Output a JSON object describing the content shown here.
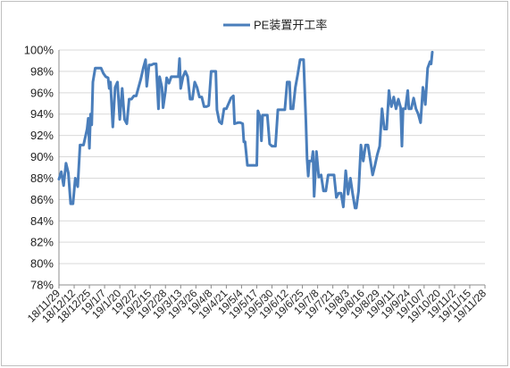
{
  "chart_data": {
    "type": "line",
    "series": [
      {
        "name": "PE装置开工率",
        "color": "#4a7ebb",
        "points": [
          [
            "2018-11-29",
            87.9
          ],
          [
            "2018-12-01",
            88.6
          ],
          [
            "2018-12-03",
            87.3
          ],
          [
            "2018-12-05",
            89.4
          ],
          [
            "2018-12-07",
            88.5
          ],
          [
            "2018-12-09",
            85.6
          ],
          [
            "2018-12-11",
            85.6
          ],
          [
            "2018-12-13",
            88.0
          ],
          [
            "2018-12-15",
            87.2
          ],
          [
            "2018-12-17",
            91.1
          ],
          [
            "2018-12-20",
            91.1
          ],
          [
            "2018-12-23",
            92.6
          ],
          [
            "2018-12-24",
            93.6
          ],
          [
            "2018-12-25",
            90.8
          ],
          [
            "2018-12-26",
            94.0
          ],
          [
            "2018-12-27",
            93.0
          ],
          [
            "2018-12-28",
            97.0
          ],
          [
            "2018-12-30",
            98.3
          ],
          [
            "2019-01-02",
            98.3
          ],
          [
            "2019-01-04",
            98.3
          ],
          [
            "2019-01-06",
            97.8
          ],
          [
            "2019-01-08",
            97.5
          ],
          [
            "2019-01-10",
            97.4
          ],
          [
            "2019-01-11",
            96.4
          ],
          [
            "2019-01-12",
            97.0
          ],
          [
            "2019-01-14",
            92.8
          ],
          [
            "2019-01-16",
            96.5
          ],
          [
            "2019-01-18",
            97.0
          ],
          [
            "2019-01-20",
            93.5
          ],
          [
            "2019-01-22",
            96.4
          ],
          [
            "2019-01-24",
            93.5
          ],
          [
            "2019-01-26",
            93.1
          ],
          [
            "2019-01-28",
            95.4
          ],
          [
            "2019-01-30",
            95.4
          ],
          [
            "2019-02-01",
            95.7
          ],
          [
            "2019-02-03",
            95.7
          ],
          [
            "2019-02-05",
            96.5
          ],
          [
            "2019-02-07",
            97.3
          ],
          [
            "2019-02-09",
            98.3
          ],
          [
            "2019-02-11",
            99.1
          ],
          [
            "2019-02-12",
            96.6
          ],
          [
            "2019-02-14",
            98.6
          ],
          [
            "2019-02-16",
            98.6
          ],
          [
            "2019-02-18",
            98.7
          ],
          [
            "2019-02-20",
            98.7
          ],
          [
            "2019-02-22",
            94.5
          ],
          [
            "2019-02-23",
            97.5
          ],
          [
            "2019-02-25",
            96.5
          ],
          [
            "2019-02-26",
            94.6
          ],
          [
            "2019-02-28",
            96.2
          ],
          [
            "2019-03-01",
            97.4
          ],
          [
            "2019-03-03",
            96.9
          ],
          [
            "2019-03-05",
            97.5
          ],
          [
            "2019-03-07",
            97.5
          ],
          [
            "2019-03-09",
            97.5
          ],
          [
            "2019-03-11",
            97.5
          ],
          [
            "2019-03-12",
            99.2
          ],
          [
            "2019-03-13",
            96.4
          ],
          [
            "2019-03-15",
            97.5
          ],
          [
            "2019-03-17",
            98.0
          ],
          [
            "2019-03-19",
            97.5
          ],
          [
            "2019-03-21",
            95.4
          ],
          [
            "2019-03-23",
            95.4
          ],
          [
            "2019-03-25",
            97.0
          ],
          [
            "2019-03-27",
            96.5
          ],
          [
            "2019-03-29",
            95.6
          ],
          [
            "2019-03-31",
            95.6
          ],
          [
            "2019-04-02",
            94.7
          ],
          [
            "2019-04-04",
            94.7
          ],
          [
            "2019-04-06",
            94.8
          ],
          [
            "2019-04-08",
            98.0
          ],
          [
            "2019-04-10",
            98.0
          ],
          [
            "2019-04-12",
            98.0
          ],
          [
            "2019-04-13",
            94.4
          ],
          [
            "2019-04-15",
            93.3
          ],
          [
            "2019-04-17",
            93.1
          ],
          [
            "2019-04-19",
            94.5
          ],
          [
            "2019-04-21",
            94.5
          ],
          [
            "2019-04-23",
            95.0
          ],
          [
            "2019-04-25",
            95.5
          ],
          [
            "2019-04-27",
            95.7
          ],
          [
            "2019-04-28",
            93.1
          ],
          [
            "2019-05-01",
            93.2
          ],
          [
            "2019-05-03",
            93.2
          ],
          [
            "2019-05-05",
            93.1
          ],
          [
            "2019-05-06",
            91.4
          ],
          [
            "2019-05-07",
            91.4
          ],
          [
            "2019-05-09",
            89.2
          ],
          [
            "2019-05-12",
            89.2
          ],
          [
            "2019-05-15",
            89.2
          ],
          [
            "2019-05-17",
            89.2
          ],
          [
            "2019-05-18",
            94.3
          ],
          [
            "2019-05-20",
            93.7
          ],
          [
            "2019-05-21",
            91.5
          ],
          [
            "2019-05-22",
            93.9
          ],
          [
            "2019-05-26",
            93.9
          ],
          [
            "2019-05-28",
            91.2
          ],
          [
            "2019-05-30",
            91.0
          ],
          [
            "2019-06-02",
            91.0
          ],
          [
            "2019-06-04",
            94.4
          ],
          [
            "2019-06-06",
            94.4
          ],
          [
            "2019-06-08",
            94.4
          ],
          [
            "2019-06-10",
            94.4
          ],
          [
            "2019-06-12",
            97.0
          ],
          [
            "2019-06-14",
            97.0
          ],
          [
            "2019-06-15",
            94.5
          ],
          [
            "2019-06-17",
            94.5
          ],
          [
            "2019-06-19",
            96.5
          ],
          [
            "2019-06-21",
            97.7
          ],
          [
            "2019-06-23",
            99.1
          ],
          [
            "2019-06-26",
            99.1
          ],
          [
            "2019-06-28",
            93.3
          ],
          [
            "2019-06-29",
            89.8
          ],
          [
            "2019-06-30",
            88.2
          ],
          [
            "2019-07-01",
            89.6
          ],
          [
            "2019-07-03",
            89.6
          ],
          [
            "2019-07-04",
            90.5
          ],
          [
            "2019-07-05",
            86.3
          ],
          [
            "2019-07-07",
            90.5
          ],
          [
            "2019-07-09",
            88.1
          ],
          [
            "2019-07-11",
            88.3
          ],
          [
            "2019-07-13",
            86.8
          ],
          [
            "2019-07-15",
            86.8
          ],
          [
            "2019-07-17",
            88.3
          ],
          [
            "2019-07-20",
            88.3
          ],
          [
            "2019-07-22",
            88.3
          ],
          [
            "2019-07-24",
            86.2
          ],
          [
            "2019-07-26",
            86.6
          ],
          [
            "2019-07-28",
            86.6
          ],
          [
            "2019-07-30",
            85.3
          ],
          [
            "2019-08-01",
            88.7
          ],
          [
            "2019-08-03",
            86.5
          ],
          [
            "2019-08-05",
            88.0
          ],
          [
            "2019-08-07",
            86.5
          ],
          [
            "2019-08-09",
            85.2
          ],
          [
            "2019-08-10",
            85.2
          ],
          [
            "2019-08-12",
            86.8
          ],
          [
            "2019-08-14",
            91.1
          ],
          [
            "2019-08-16",
            89.6
          ],
          [
            "2019-08-18",
            91.1
          ],
          [
            "2019-08-20",
            91.1
          ],
          [
            "2019-08-22",
            89.7
          ],
          [
            "2019-08-24",
            88.3
          ],
          [
            "2019-08-26",
            89.2
          ],
          [
            "2019-08-28",
            90.2
          ],
          [
            "2019-08-30",
            91.0
          ],
          [
            "2019-09-01",
            94.5
          ],
          [
            "2019-09-03",
            92.6
          ],
          [
            "2019-09-05",
            92.6
          ],
          [
            "2019-09-07",
            96.2
          ],
          [
            "2019-09-08",
            95.2
          ],
          [
            "2019-09-09",
            94.7
          ],
          [
            "2019-09-11",
            95.6
          ],
          [
            "2019-09-13",
            94.5
          ],
          [
            "2019-09-15",
            95.4
          ],
          [
            "2019-09-17",
            94.6
          ],
          [
            "2019-09-18",
            91.0
          ],
          [
            "2019-09-19",
            94.5
          ],
          [
            "2019-09-21",
            94.5
          ],
          [
            "2019-09-23",
            96.2
          ],
          [
            "2019-09-24",
            94.5
          ],
          [
            "2019-09-26",
            94.5
          ],
          [
            "2019-09-28",
            95.5
          ],
          [
            "2019-09-30",
            94.5
          ],
          [
            "2019-10-02",
            94.0
          ],
          [
            "2019-10-04",
            93.2
          ],
          [
            "2019-10-06",
            96.5
          ],
          [
            "2019-10-08",
            94.9
          ],
          [
            "2019-10-10",
            98.3
          ],
          [
            "2019-10-12",
            98.9
          ],
          [
            "2019-10-13",
            98.7
          ],
          [
            "2019-10-14",
            99.8
          ]
        ]
      }
    ],
    "x_tick_labels": [
      "18/11/29",
      "18/12/12",
      "18/12/25",
      "19/1/7",
      "19/1/20",
      "19/2/2",
      "19/2/15",
      "19/2/28",
      "19/3/13",
      "19/3/26",
      "19/4/8",
      "19/4/21",
      "19/5/4",
      "19/5/17",
      "19/5/30",
      "19/6/12",
      "19/6/25",
      "19/7/8",
      "19/7/21",
      "19/8/3",
      "19/8/16",
      "19/8/29",
      "19/9/11",
      "19/9/24",
      "19/10/7",
      "19/10/20",
      "19/11/2",
      "19/11/15",
      "19/11/28"
    ],
    "y_tick_labels": [
      "78%",
      "80%",
      "82%",
      "84%",
      "86%",
      "88%",
      "90%",
      "92%",
      "94%",
      "96%",
      "98%",
      "100%"
    ],
    "ylim": [
      78,
      100
    ],
    "xlim": [
      "2018-11-29",
      "2019-11-28"
    ],
    "grid": "horizontal",
    "legend_position": "top-center"
  }
}
